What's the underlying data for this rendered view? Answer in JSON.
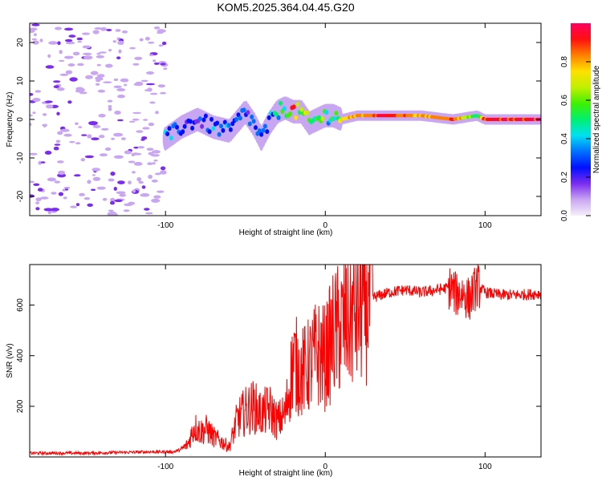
{
  "title": "KOM5.2025.364.04.45.G20",
  "chart_data": [
    {
      "type": "heatmap",
      "title": "KOM5.2025.364.04.45.G20",
      "xlabel": "Height of straight line (km)",
      "ylabel": "Frequency (Hz)",
      "xlim": [
        -185,
        135
      ],
      "ylim": [
        -25,
        25
      ],
      "xticks": [
        -100,
        0,
        100
      ],
      "yticks": [
        -20,
        -10,
        0,
        10,
        20
      ],
      "colorbar": {
        "label": "Normalized spectral amplitude",
        "range": [
          0,
          1
        ],
        "ticks": [
          "0.0",
          "0.2",
          "0.4",
          "0.6",
          "0.8"
        ],
        "colors": [
          "#f6f0fb",
          "#c9a6f2",
          "#7b2cf0",
          "#0010ff",
          "#0070ff",
          "#00e0f0",
          "#00f070",
          "#40f000",
          "#c0f000",
          "#ffe000",
          "#ff8000",
          "#ff1010",
          "#ff0060"
        ]
      },
      "ridge": {
        "x": [
          -100,
          -90,
          -80,
          -70,
          -60,
          -50,
          -45,
          -40,
          -35,
          -30,
          -25,
          -20,
          -15,
          -10,
          -5,
          0,
          5,
          10,
          20,
          40,
          60,
          80,
          95,
          100,
          120,
          135
        ],
        "y": [
          -5,
          -2,
          0,
          -2,
          -3,
          2,
          -1,
          -5,
          -1,
          2,
          3,
          2,
          2,
          -1,
          0,
          1,
          1,
          0,
          1,
          1,
          1,
          0,
          1,
          0,
          0,
          0
        ],
        "amplitude": [
          0.35,
          0.3,
          0.25,
          0.35,
          0.4,
          0.3,
          0.3,
          0.3,
          0.4,
          0.45,
          0.6,
          0.9,
          0.7,
          0.6,
          0.55,
          0.55,
          0.6,
          0.7,
          0.85,
          0.95,
          0.8,
          0.9,
          0.5,
          0.95,
          0.95,
          0.95
        ]
      },
      "noise_region": {
        "x_range": [
          -185,
          -100
        ],
        "y_range": [
          -25,
          25
        ],
        "amplitude": 0.1
      }
    },
    {
      "type": "line",
      "xlabel": "Height of straight line (km)",
      "ylabel": "SNR (v/v)",
      "xlim": [
        -185,
        135
      ],
      "ylim": [
        0,
        760
      ],
      "xticks": [
        -100,
        0,
        100
      ],
      "yticks": [
        200,
        400,
        600
      ],
      "color": "#ff0000",
      "x": [
        -185,
        -150,
        -110,
        -95,
        -90,
        -86,
        -82,
        -78,
        -74,
        -70,
        -65,
        -60,
        -55,
        -50,
        -45,
        -40,
        -35,
        -30,
        -25,
        -20,
        -15,
        -10,
        -5,
        0,
        5,
        10,
        15,
        20,
        25,
        30,
        40,
        50,
        60,
        70,
        78,
        82,
        86,
        90,
        95,
        100,
        110,
        120,
        135
      ],
      "y": [
        15,
        15,
        20,
        20,
        30,
        50,
        120,
        100,
        110,
        80,
        60,
        40,
        150,
        180,
        200,
        170,
        190,
        140,
        170,
        380,
        330,
        360,
        410,
        390,
        480,
        510,
        550,
        580,
        620,
        630,
        650,
        660,
        650,
        660,
        670,
        640,
        650,
        620,
        680,
        650,
        640,
        640,
        645
      ]
    }
  ]
}
